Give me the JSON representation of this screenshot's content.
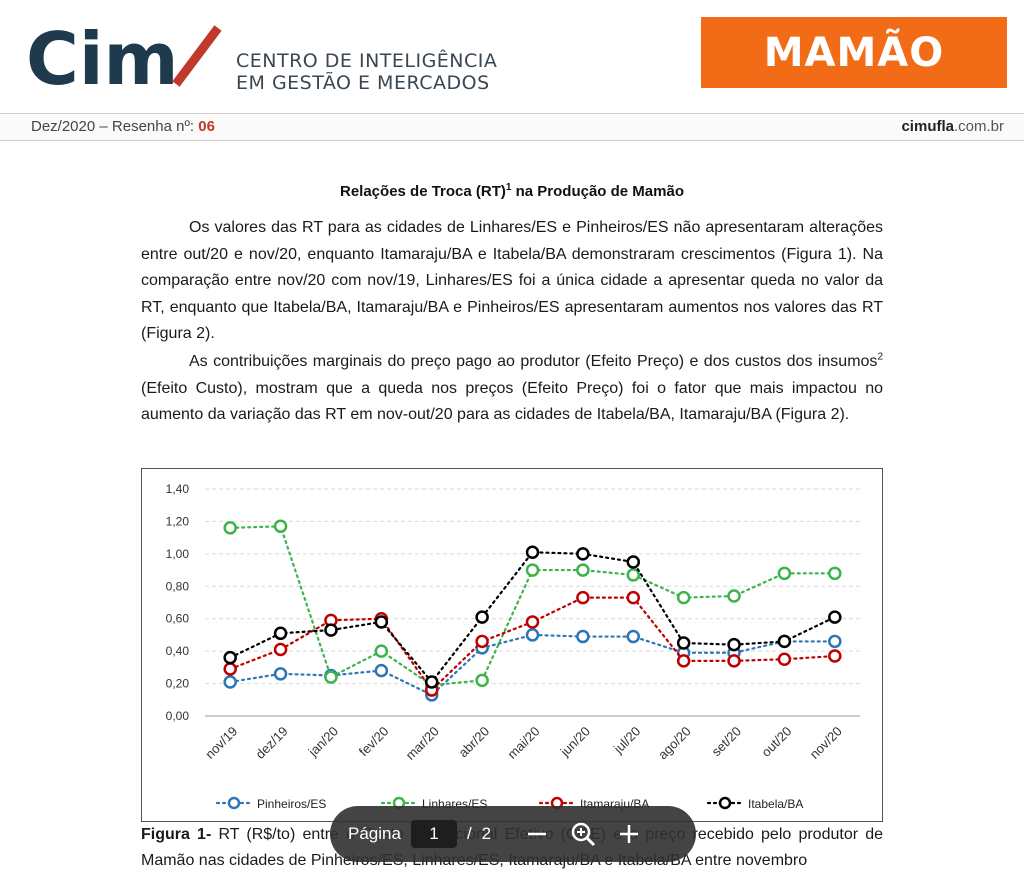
{
  "header": {
    "logo_text": "Cim",
    "org_line1": "CENTRO DE INTELIGÊNCIA",
    "org_line2": "EM GESTÃO E MERCADOS",
    "product": "MAMÃO",
    "colors": {
      "brand_dark": "#1f3a4d",
      "brand_red": "#c0392b",
      "banner": "#f26b16"
    }
  },
  "meta": {
    "issue_prefix": "Dez/2020 – Resenha nº: ",
    "issue_number": "06",
    "site_bold": "cimufla",
    "site_rest": ".com.br"
  },
  "section": {
    "title": "Relações de Troca (RT)",
    "title_sup": "1",
    "title_rest": " na Produção de Mamão"
  },
  "paragraphs": {
    "p1": "Os valores das RT para as cidades de Linhares/ES e Pinheiros/ES não apresentaram alterações entre out/20 e nov/20, enquanto Itamaraju/BA e Itabela/BA demonstraram crescimentos (Figura 1). Na comparação entre nov/20 com nov/19, Linhares/ES foi a única cidade a apresentar queda no valor da RT, enquanto que Itabela/BA, Itamaraju/BA e Pinheiros/ES apresentaram aumentos nos valores das RT (Figura 2).",
    "p2_a": "As contribuições marginais do preço pago ao produtor (Efeito Preço) e dos custos dos insumos",
    "p2_sup": "2",
    "p2_b": " (Efeito Custo), mostram que a queda nos preços (Efeito Preço) foi o fator que mais impactou no aumento da variação das RT em nov-out/20 para as cidades de Itabela/BA, Itamaraju/BA (Figura 2)."
  },
  "chart_data": {
    "type": "line",
    "title": "",
    "xlabel": "",
    "ylabel": "",
    "ylim": [
      0,
      1.4
    ],
    "yticks": [
      "0,00",
      "0,20",
      "0,40",
      "0,60",
      "0,80",
      "1,00",
      "1,20",
      "1,40"
    ],
    "grid": true,
    "legend_position": "bottom",
    "categories": [
      "nov/19",
      "dez/19",
      "jan/20",
      "fev/20",
      "mar/20",
      "abr/20",
      "mai/20",
      "jun/20",
      "jul/20",
      "ago/20",
      "set/20",
      "out/20",
      "nov/20"
    ],
    "series": [
      {
        "name": "Pinheiros/ES",
        "color": "#2e75b6",
        "values": [
          0.21,
          0.26,
          0.25,
          0.28,
          0.13,
          0.42,
          0.5,
          0.49,
          0.49,
          0.39,
          0.39,
          0.46,
          0.46
        ]
      },
      {
        "name": "Linhares/ES",
        "color": "#3cb44b",
        "values": [
          1.16,
          1.17,
          0.24,
          0.4,
          0.19,
          0.22,
          0.9,
          0.9,
          0.87,
          0.73,
          0.74,
          0.88,
          0.88
        ]
      },
      {
        "name": "Itamaraju/BA",
        "color": "#c00000",
        "values": [
          0.29,
          0.41,
          0.59,
          0.6,
          0.16,
          0.46,
          0.58,
          0.73,
          0.73,
          0.34,
          0.34,
          0.35,
          0.37
        ]
      },
      {
        "name": "Itabela/BA",
        "color": "#000000",
        "values": [
          0.36,
          0.51,
          0.53,
          0.58,
          0.21,
          0.61,
          1.01,
          1.0,
          0.95,
          0.45,
          0.44,
          0.46,
          0.61
        ]
      }
    ]
  },
  "caption": {
    "label": "Figura 1-",
    "text": " RT (R$/to) entre o Custo Operacional Efetivo (COE) e o preço recebido pelo produtor de Mamão nas cidades de Pinheiros/ES, Linhares/ES, Itamaraju/BA e Itabela/BA entre novembro"
  },
  "viewer": {
    "page_label": "Página",
    "current_page": "1",
    "separator": "/",
    "total_pages": "2",
    "icons": [
      "zoom-out-icon",
      "zoom-in-icon",
      "plus-icon"
    ]
  }
}
